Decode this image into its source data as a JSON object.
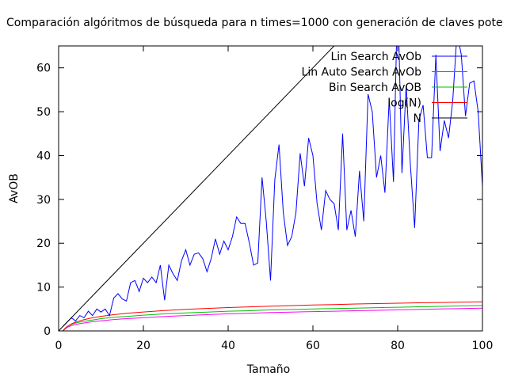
{
  "chart_data": {
    "type": "line",
    "title": "Comparación algóritmos de búsqueda para n times=1000 con generación de claves pote",
    "xlabel": "Tamaño",
    "ylabel": "AvOB",
    "xlim": [
      0,
      100
    ],
    "ylim": [
      0,
      65
    ],
    "xticks": [
      0,
      20,
      40,
      60,
      80,
      100
    ],
    "yticks": [
      0,
      10,
      20,
      30,
      40,
      50,
      60
    ],
    "grid": false,
    "legend_position": "top-right",
    "series": [
      {
        "name": "Lin Search AvOb",
        "color": "#0000ff",
        "x": [
          1,
          2,
          3,
          4,
          5,
          6,
          7,
          8,
          9,
          10,
          11,
          12,
          13,
          14,
          15,
          16,
          17,
          18,
          19,
          20,
          21,
          22,
          23,
          24,
          25,
          26,
          27,
          28,
          29,
          30,
          31,
          32,
          33,
          34,
          35,
          36,
          37,
          38,
          39,
          40,
          41,
          42,
          43,
          44,
          45,
          46,
          47,
          48,
          49,
          50,
          51,
          52,
          53,
          54,
          55,
          56,
          57,
          58,
          59,
          60,
          61,
          62,
          63,
          64,
          65,
          66,
          67,
          68,
          69,
          70,
          71,
          72,
          73,
          74,
          75,
          76,
          77,
          78,
          79,
          80,
          81,
          82,
          83,
          84,
          85,
          86,
          87,
          88,
          89,
          90,
          91,
          92,
          93,
          94,
          95,
          96,
          97,
          98,
          99,
          100
        ],
        "y": [
          1,
          2,
          3,
          2.3,
          3.5,
          3,
          4.5,
          3.5,
          5,
          4.3,
          5,
          3.5,
          7.5,
          8.5,
          7.3,
          6.8,
          11,
          11.5,
          9,
          12,
          11,
          12.3,
          11,
          15,
          7,
          15,
          13,
          11.5,
          16,
          18.5,
          15,
          17.5,
          17.8,
          16.5,
          13.5,
          16.5,
          21,
          17.5,
          20.5,
          18.5,
          21.5,
          26,
          24.5,
          24.5,
          20,
          15,
          15.5,
          35,
          25,
          11.5,
          34.5,
          42.5,
          27,
          19.5,
          21.5,
          27,
          40.5,
          33,
          44,
          40,
          29,
          23,
          32,
          30,
          29,
          23,
          45,
          23,
          27.5,
          21.5,
          36.5,
          25,
          54,
          50,
          35,
          40,
          31.5,
          53,
          34,
          78,
          36,
          56,
          38,
          23.5,
          48,
          51.5,
          39.5,
          39.5,
          63,
          41,
          48,
          44,
          52.5,
          68,
          63,
          49,
          56.5,
          57,
          50,
          33
        ]
      },
      {
        "name": "Lin Auto Search AvOb",
        "color": "#ff00ff",
        "x": [
          1,
          2,
          3,
          4,
          6,
          8,
          10,
          13,
          16,
          20,
          25,
          30,
          35,
          40,
          45,
          50,
          55,
          60,
          65,
          70,
          75,
          80,
          85,
          90,
          95,
          100
        ],
        "y": [
          0,
          0.8,
          1.2,
          1.5,
          1.8,
          2.1,
          2.3,
          2.6,
          2.8,
          3.0,
          3.3,
          3.5,
          3.7,
          3.9,
          4.0,
          4.2,
          4.3,
          4.4,
          4.5,
          4.6,
          4.7,
          4.8,
          4.9,
          5.0,
          5.1,
          5.2
        ]
      },
      {
        "name": "Bin Search AvOB",
        "color": "#00c000",
        "x": [
          1,
          2,
          3,
          4,
          6,
          8,
          10,
          13,
          16,
          20,
          25,
          30,
          35,
          40,
          45,
          50,
          55,
          60,
          65,
          70,
          75,
          80,
          85,
          90,
          95,
          100
        ],
        "y": [
          0,
          1,
          1.5,
          1.8,
          2.2,
          2.5,
          2.8,
          3.1,
          3.3,
          3.6,
          3.9,
          4.1,
          4.3,
          4.5,
          4.6,
          4.8,
          4.9,
          5.0,
          5.1,
          5.2,
          5.3,
          5.4,
          5.5,
          5.6,
          5.7,
          5.8
        ]
      },
      {
        "name": "log(N)",
        "color": "#ff0000",
        "x": [
          1,
          1.5,
          2,
          3,
          4,
          5,
          6,
          8,
          10,
          13,
          16,
          20,
          25,
          30,
          35,
          40,
          45,
          50,
          55,
          60,
          65,
          70,
          75,
          80,
          85,
          90,
          95,
          100
        ],
        "y": [
          0,
          0.58,
          1,
          1.58,
          2,
          2.32,
          2.58,
          3,
          3.32,
          3.7,
          4,
          4.32,
          4.64,
          4.91,
          5.13,
          5.32,
          5.49,
          5.64,
          5.78,
          5.91,
          6.02,
          6.13,
          6.23,
          6.32,
          6.41,
          6.49,
          6.57,
          6.64
        ]
      },
      {
        "name": "N",
        "color": "#000000",
        "x": [
          0,
          100
        ],
        "y": [
          0,
          100
        ]
      }
    ]
  }
}
